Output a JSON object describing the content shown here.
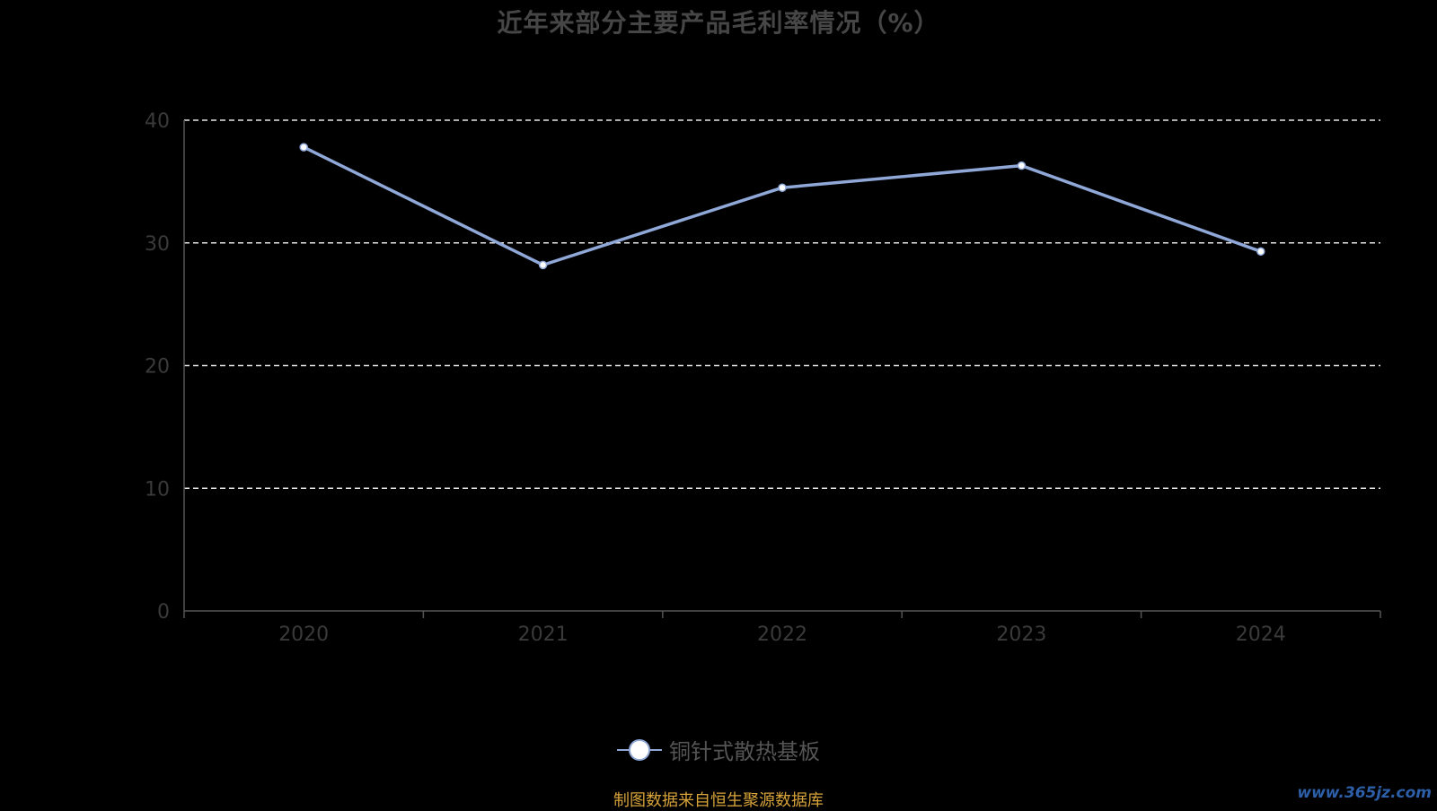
{
  "chart_data": {
    "type": "line",
    "title": "近年来部分主要产品毛利率情况（%）",
    "categories": [
      "2020",
      "2021",
      "2022",
      "2023",
      "2024"
    ],
    "series": [
      {
        "name": "铜针式散热基板",
        "values": [
          37.8,
          28.2,
          34.5,
          36.3,
          29.3
        ]
      }
    ],
    "ylim": [
      0,
      40
    ],
    "yticks": [
      "0",
      "10",
      "20",
      "30",
      "40"
    ],
    "grid": true,
    "legend_position": "bottom",
    "line_color": "#8fa8d8"
  },
  "footer": {
    "source": "制图数据来自恒生聚源数据库",
    "watermark": "www.365jz.com"
  }
}
